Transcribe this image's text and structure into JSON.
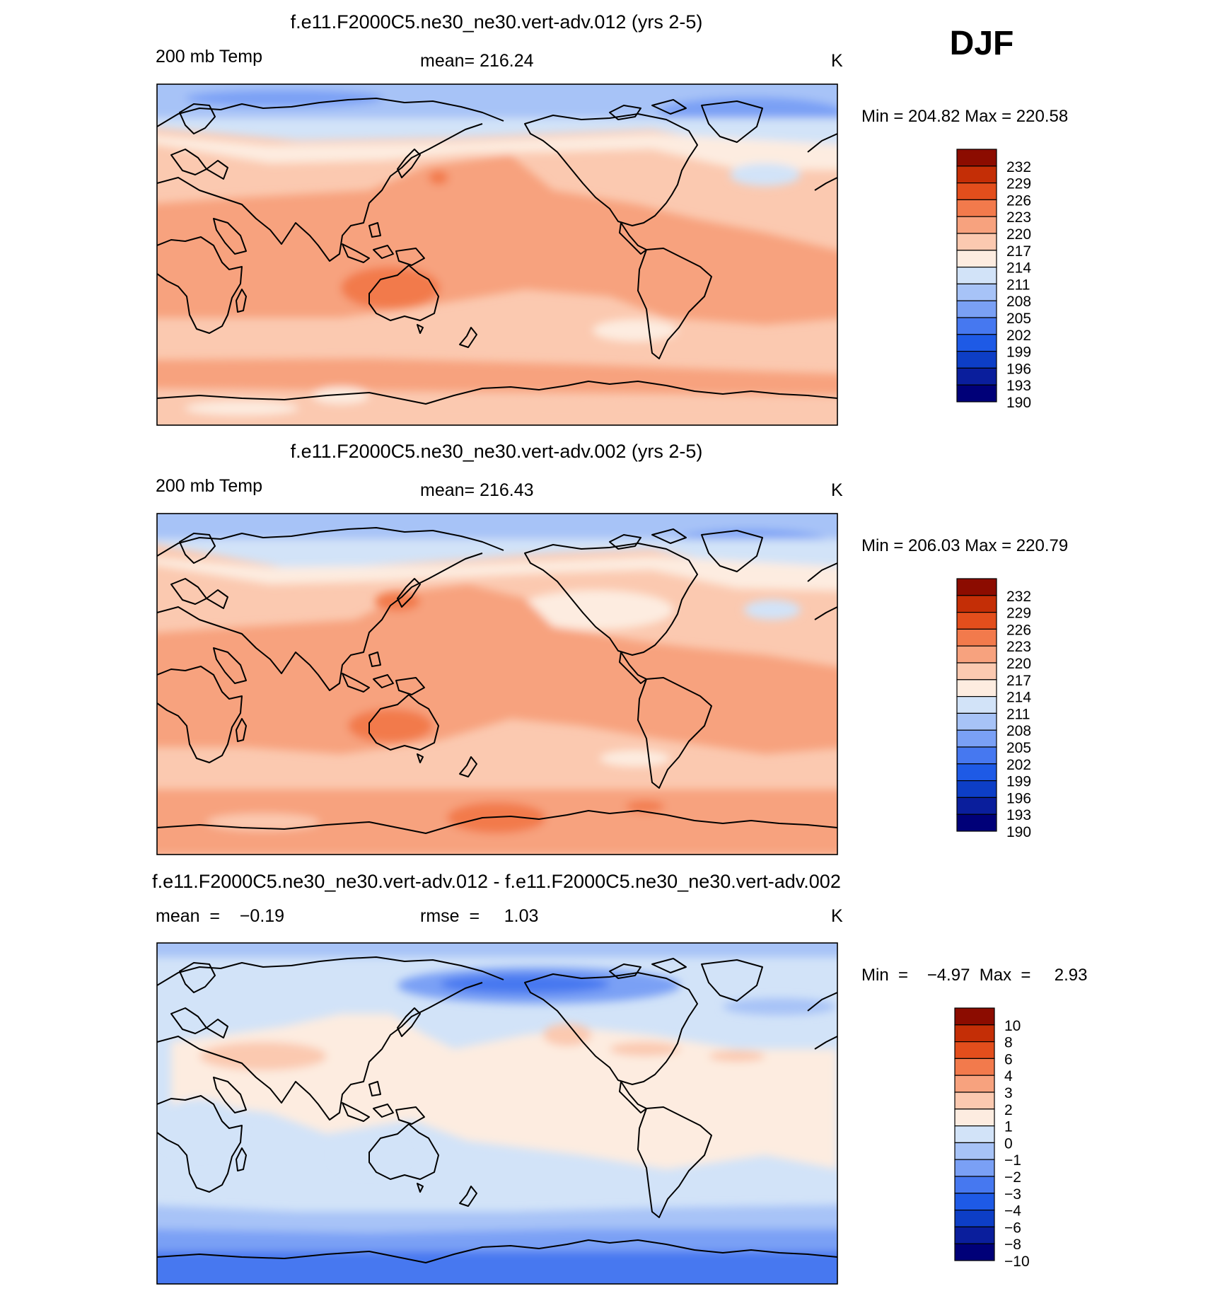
{
  "season": "DJF",
  "colors": {
    "temp_palette": [
      "#000078",
      "#0a1e9c",
      "#0d3ec6",
      "#1e5ae6",
      "#4678f0",
      "#7aa0f5",
      "#a7c3f7",
      "#d2e3f8",
      "#fdece0",
      "#fbc9b0",
      "#f7a27e",
      "#f27a4c",
      "#e34e1c",
      "#c42e06",
      "#8c0c00"
    ],
    "diff_palette": [
      "#000078",
      "#0a1e9c",
      "#0d3ec6",
      "#1e5ae6",
      "#4678f0",
      "#7aa0f5",
      "#a7c3f7",
      "#d2e3f8",
      "#fdece0",
      "#fbc9b0",
      "#f7a27e",
      "#f27a4c",
      "#e34e1c",
      "#c42e06",
      "#8c0c00"
    ],
    "coastline": "#000000"
  },
  "panels": [
    {
      "title": "f.e11.F2000C5.ne30_ne30.vert-adv.012 (yrs 2-5)",
      "left_label": "200 mb Temp",
      "center_label": "mean= 216.24",
      "units": "K",
      "minmax": "Min  =  204.82  Max  =  220.58",
      "colorbar_labels": [
        "232",
        "229",
        "226",
        "223",
        "220",
        "217",
        "214",
        "211",
        "208",
        "205",
        "202",
        "199",
        "196",
        "193",
        "190"
      ]
    },
    {
      "title": "f.e11.F2000C5.ne30_ne30.vert-adv.002 (yrs 2-5)",
      "left_label": "200 mb Temp",
      "center_label": "mean= 216.43",
      "units": "K",
      "minmax": "Min  =  206.03  Max  =  220.79",
      "colorbar_labels": [
        "232",
        "229",
        "226",
        "223",
        "220",
        "217",
        "214",
        "211",
        "208",
        "205",
        "202",
        "199",
        "196",
        "193",
        "190"
      ]
    },
    {
      "title": "f.e11.F2000C5.ne30_ne30.vert-adv.012 - f.e11.F2000C5.ne30_ne30.vert-adv.002",
      "left_label": "mean  =    −0.19",
      "center_label": "rmse  =     1.03",
      "units": "K",
      "minmax": "Min  =    −4.97  Max  =     2.93",
      "colorbar_labels": [
        "10",
        "8",
        "6",
        "4",
        "3",
        "2",
        "1",
        "0",
        "−1",
        "−2",
        "−3",
        "−4",
        "−6",
        "−8",
        "−10"
      ]
    }
  ]
}
